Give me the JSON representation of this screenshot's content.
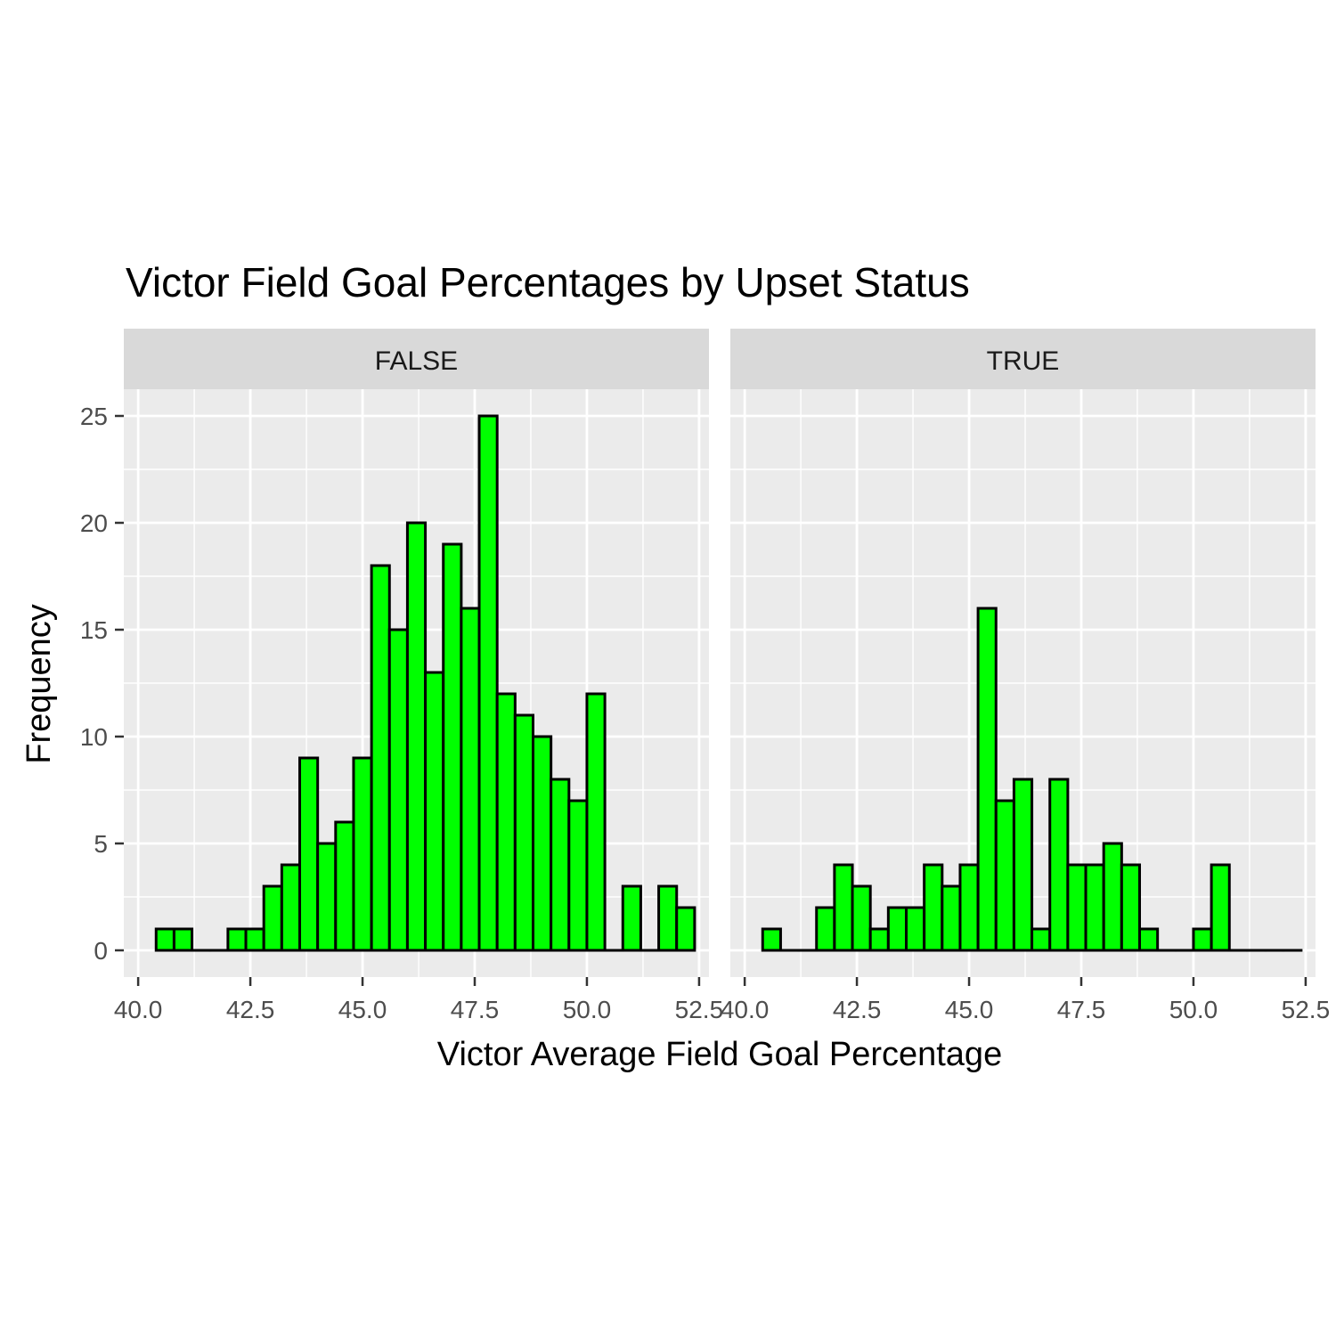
{
  "chart_data": {
    "type": "bar",
    "title": "Victor Field Goal Percentages by Upset Status",
    "xlabel": "Victor Average Field Goal Percentage",
    "ylabel": "Frequency",
    "xlim": [
      40.0,
      52.5
    ],
    "ylim": [
      0,
      25
    ],
    "x_ticks": [
      "40.0",
      "42.5",
      "45.0",
      "47.5",
      "50.0",
      "52.5"
    ],
    "y_ticks": [
      "0",
      "5",
      "10",
      "15",
      "20",
      "25"
    ],
    "grid": true,
    "bin_width": 0.4,
    "bin_centers": [
      40.6,
      41.0,
      41.4,
      41.8,
      42.2,
      42.6,
      43.0,
      43.4,
      43.8,
      44.2,
      44.6,
      45.0,
      45.4,
      45.8,
      46.2,
      46.6,
      47.0,
      47.4,
      47.8,
      48.2,
      48.6,
      49.0,
      49.4,
      49.8,
      50.2,
      50.6,
      51.0,
      51.4,
      51.8,
      52.2
    ],
    "fill_color": "#00ff00",
    "outline_color": "#000000",
    "panels": [
      {
        "name": "FALSE",
        "values": [
          1,
          1,
          0,
          0,
          1,
          1,
          3,
          4,
          9,
          5,
          6,
          9,
          18,
          15,
          20,
          13,
          19,
          16,
          25,
          12,
          11,
          10,
          8,
          7,
          12,
          0,
          3,
          0,
          3,
          2
        ]
      },
      {
        "name": "TRUE",
        "values": [
          1,
          0,
          0,
          2,
          4,
          3,
          1,
          2,
          2,
          4,
          3,
          4,
          16,
          7,
          8,
          1,
          8,
          4,
          4,
          5,
          4,
          1,
          0,
          0,
          1,
          4,
          0,
          0,
          0,
          0
        ]
      }
    ]
  }
}
